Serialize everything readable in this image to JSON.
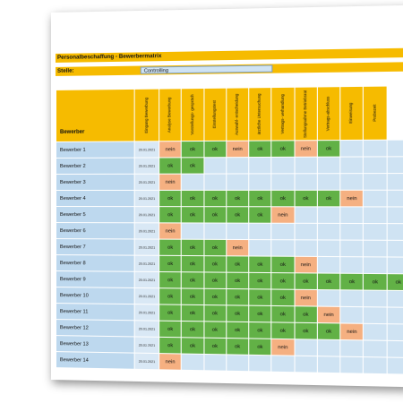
{
  "title": "Personalbeschaffung - Bewerbermatrix",
  "stelle": {
    "label": "Stelle:",
    "value": "Controlling"
  },
  "header": {
    "first": "Bewerber",
    "columns": [
      "Eingang Bewerbung",
      "Analyse Bewerbung",
      "Vorstellungs- gespräch",
      "Einstellungstest",
      "Auswahl- entscheidung",
      "ärztliche Untersuchung",
      "Vertrags- verhandlung",
      "Stellungnahme Betriebsrat",
      "Vertrags-abschluss",
      "Einweisung",
      "Probezeit"
    ]
  },
  "rows": [
    {
      "name": "Bewerber 1",
      "date": "20.01.2021",
      "cells": [
        "nein",
        "ok",
        "ok",
        "nein",
        "ok",
        "ok",
        "nein",
        "ok",
        "",
        "",
        ""
      ]
    },
    {
      "name": "Bewerber 2",
      "date": "20.01.2021",
      "cells": [
        "ok",
        "ok",
        "",
        "",
        "",
        "",
        "",
        "",
        "",
        "",
        ""
      ]
    },
    {
      "name": "Bewerber 3",
      "date": "20.01.2021",
      "cells": [
        "nein",
        "",
        "",
        "",
        "",
        "",
        "",
        "",
        "",
        "",
        ""
      ]
    },
    {
      "name": "Bewerber 4",
      "date": "20.01.2021",
      "cells": [
        "ok",
        "ok",
        "ok",
        "ok",
        "ok",
        "ok",
        "ok",
        "ok",
        "nein",
        "",
        ""
      ]
    },
    {
      "name": "Bewerber 5",
      "date": "20.01.2021",
      "cells": [
        "ok",
        "ok",
        "ok",
        "ok",
        "ok",
        "nein",
        "",
        "",
        "",
        "",
        ""
      ]
    },
    {
      "name": "Bewerber 6",
      "date": "20.01.2021",
      "cells": [
        "nein",
        "",
        "",
        "",
        "",
        "",
        "",
        "",
        "",
        "",
        ""
      ]
    },
    {
      "name": "Bewerber 7",
      "date": "20.01.2021",
      "cells": [
        "ok",
        "ok",
        "ok",
        "nein",
        "",
        "",
        "",
        "",
        "",
        "",
        ""
      ]
    },
    {
      "name": "Bewerber 8",
      "date": "20.01.2021",
      "cells": [
        "ok",
        "ok",
        "ok",
        "ok",
        "ok",
        "ok",
        "nein",
        "",
        "",
        "",
        ""
      ]
    },
    {
      "name": "Bewerber 9",
      "date": "20.01.2021",
      "cells": [
        "ok",
        "ok",
        "ok",
        "ok",
        "ok",
        "ok",
        "ok",
        "ok",
        "ok",
        "ok",
        "ok"
      ]
    },
    {
      "name": "Bewerber 10",
      "date": "20.01.2021",
      "cells": [
        "ok",
        "ok",
        "ok",
        "ok",
        "ok",
        "ok",
        "nein",
        "",
        "",
        "",
        ""
      ]
    },
    {
      "name": "Bewerber 11",
      "date": "20.01.2021",
      "cells": [
        "ok",
        "ok",
        "ok",
        "ok",
        "ok",
        "ok",
        "ok",
        "nein",
        "",
        "",
        ""
      ]
    },
    {
      "name": "Bewerber 12",
      "date": "20.01.2021",
      "cells": [
        "ok",
        "ok",
        "ok",
        "ok",
        "ok",
        "ok",
        "ok",
        "ok",
        "nein",
        "",
        ""
      ]
    },
    {
      "name": "Bewerber 13",
      "date": "20.01.2021",
      "cells": [
        "ok",
        "ok",
        "ok",
        "ok",
        "ok",
        "nein",
        "",
        "",
        "",
        "",
        ""
      ]
    },
    {
      "name": "Bewerber 14",
      "date": "20.01.2021",
      "cells": [
        "nein",
        "",
        "",
        "",
        "",
        "",
        "",
        "",
        "",
        "",
        ""
      ]
    }
  ],
  "colors": {
    "header": "#f6bb00",
    "ok": "#62b146",
    "nein": "#f5b081",
    "empty": "#cfe3f3",
    "name": "#bdd8ee"
  }
}
